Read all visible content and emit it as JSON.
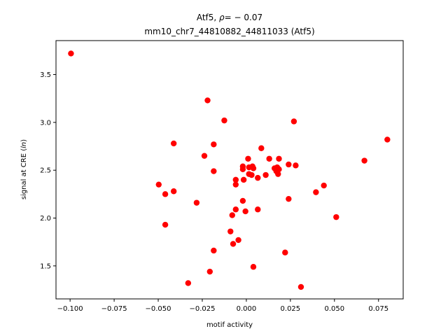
{
  "chart_data": {
    "type": "scatter",
    "title": {
      "line1_prefix": "Atf5, ",
      "line1_rho_symbol": "ρ",
      "line1_rho_value": "= − 0.07",
      "line2": "mm10_chr7_44810882_44811033 (Atf5)"
    },
    "xlabel": "motif activity",
    "ylabel_prefix": "signal at CRE (",
    "ylabel_italic": "ln",
    "ylabel_suffix": ")",
    "xlim": [
      -0.108,
      0.089
    ],
    "ylim": [
      1.155,
      3.855
    ],
    "x_ticks": [
      -0.1,
      -0.075,
      -0.05,
      -0.025,
      0.0,
      0.025,
      0.05,
      0.075
    ],
    "x_tick_labels": [
      "−0.100",
      "−0.075",
      "−0.050",
      "−0.025",
      "0.000",
      "0.025",
      "0.050",
      "0.075"
    ],
    "y_ticks": [
      1.5,
      2.0,
      2.5,
      3.0,
      3.5
    ],
    "y_tick_labels": [
      "1.5",
      "2.0",
      "2.5",
      "3.0",
      "3.5"
    ],
    "grid": false,
    "marker_color": "#ff0000",
    "points": [
      {
        "x": -0.0995,
        "y": 3.72
      },
      {
        "x": -0.0497,
        "y": 2.35
      },
      {
        "x": -0.046,
        "y": 2.25
      },
      {
        "x": -0.046,
        "y": 1.93
      },
      {
        "x": -0.0412,
        "y": 2.78
      },
      {
        "x": -0.0412,
        "y": 2.28
      },
      {
        "x": -0.033,
        "y": 1.32
      },
      {
        "x": -0.0282,
        "y": 2.16
      },
      {
        "x": -0.0238,
        "y": 2.65
      },
      {
        "x": -0.022,
        "y": 3.23
      },
      {
        "x": -0.0207,
        "y": 1.44
      },
      {
        "x": -0.0185,
        "y": 2.77
      },
      {
        "x": -0.0185,
        "y": 2.49
      },
      {
        "x": -0.0185,
        "y": 1.66
      },
      {
        "x": -0.0125,
        "y": 3.02
      },
      {
        "x": -0.009,
        "y": 1.86
      },
      {
        "x": -0.008,
        "y": 2.03
      },
      {
        "x": -0.0075,
        "y": 1.73
      },
      {
        "x": -0.006,
        "y": 2.4
      },
      {
        "x": -0.006,
        "y": 2.35
      },
      {
        "x": -0.006,
        "y": 2.09
      },
      {
        "x": -0.0045,
        "y": 1.77
      },
      {
        "x": -0.002,
        "y": 2.54
      },
      {
        "x": -0.002,
        "y": 2.51
      },
      {
        "x": -0.002,
        "y": 2.18
      },
      {
        "x": -0.0015,
        "y": 2.4
      },
      {
        "x": -0.0005,
        "y": 2.07
      },
      {
        "x": 0.001,
        "y": 2.62
      },
      {
        "x": 0.0015,
        "y": 2.53
      },
      {
        "x": 0.0015,
        "y": 2.46
      },
      {
        "x": 0.003,
        "y": 2.45
      },
      {
        "x": 0.0035,
        "y": 2.54
      },
      {
        "x": 0.004,
        "y": 2.52
      },
      {
        "x": 0.004,
        "y": 1.49
      },
      {
        "x": 0.0065,
        "y": 2.42
      },
      {
        "x": 0.0065,
        "y": 2.09
      },
      {
        "x": 0.0085,
        "y": 2.73
      },
      {
        "x": 0.011,
        "y": 2.45
      },
      {
        "x": 0.013,
        "y": 2.62
      },
      {
        "x": 0.016,
        "y": 2.52
      },
      {
        "x": 0.017,
        "y": 2.49
      },
      {
        "x": 0.0175,
        "y": 2.53
      },
      {
        "x": 0.018,
        "y": 2.46
      },
      {
        "x": 0.0185,
        "y": 2.62
      },
      {
        "x": 0.0185,
        "y": 2.51
      },
      {
        "x": 0.022,
        "y": 1.64
      },
      {
        "x": 0.024,
        "y": 2.56
      },
      {
        "x": 0.024,
        "y": 2.2
      },
      {
        "x": 0.027,
        "y": 3.01
      },
      {
        "x": 0.028,
        "y": 2.55
      },
      {
        "x": 0.031,
        "y": 1.28
      },
      {
        "x": 0.0395,
        "y": 2.27
      },
      {
        "x": 0.044,
        "y": 2.34
      },
      {
        "x": 0.051,
        "y": 2.01
      },
      {
        "x": 0.067,
        "y": 2.6
      },
      {
        "x": 0.08,
        "y": 2.82
      }
    ]
  }
}
